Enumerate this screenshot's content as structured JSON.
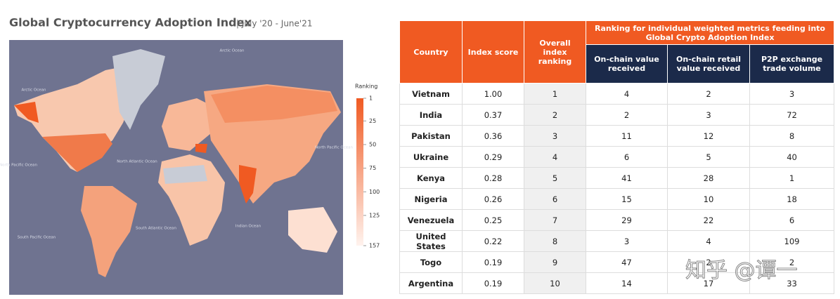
{
  "title": "Global Cryptocurrency Adoption Index",
  "subtitle": "| July '20 - June'21",
  "map": {
    "legend": {
      "title": "Ranking",
      "ticks": [
        1,
        25,
        50,
        75,
        100,
        125,
        157
      ],
      "colors": [
        "#f05a22",
        "#fff3ee"
      ]
    },
    "ocean_labels": [
      "Arctic Ocean",
      "Arctic Ocean",
      "North Atlantic Ocean",
      "North Pacific Ocean",
      "North Pacific Ocean",
      "South Pacific Ocean",
      "South Atlantic Ocean",
      "Indian Ocean"
    ]
  },
  "table": {
    "header": [
      "Country",
      "Index score",
      "Overall index ranking"
    ],
    "group_header": "Ranking for individual weighted metrics feeding into Global Crypto Adoption Index",
    "sub_header": [
      "On-chain value received",
      "On-chain retail value received",
      "P2P exchange trade volume"
    ],
    "rows": [
      [
        "Vietnam",
        "1.00",
        "1",
        "4",
        "2",
        "3"
      ],
      [
        "India",
        "0.37",
        "2",
        "2",
        "3",
        "72"
      ],
      [
        "Pakistan",
        "0.36",
        "3",
        "11",
        "12",
        "8"
      ],
      [
        "Ukraine",
        "0.29",
        "4",
        "6",
        "5",
        "40"
      ],
      [
        "Kenya",
        "0.28",
        "5",
        "41",
        "28",
        "1"
      ],
      [
        "Nigeria",
        "0.26",
        "6",
        "15",
        "10",
        "18"
      ],
      [
        "Venezuela",
        "0.25",
        "7",
        "29",
        "22",
        "6"
      ],
      [
        "United States",
        "0.22",
        "8",
        "3",
        "4",
        "109"
      ],
      [
        "Togo",
        "0.19",
        "9",
        "47",
        "2",
        "2"
      ],
      [
        "Argentina",
        "0.19",
        "10",
        "14",
        "17",
        "33"
      ]
    ]
  },
  "watermark": "知乎 @谭一"
}
